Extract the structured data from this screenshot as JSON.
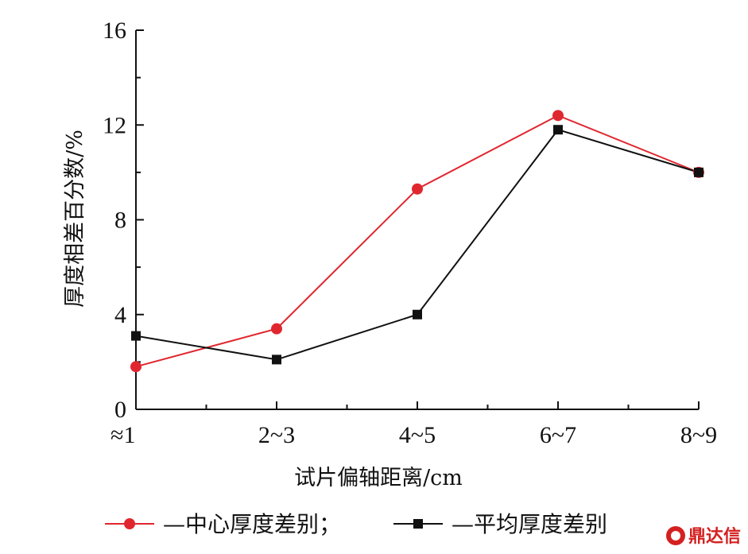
{
  "chart_data": {
    "type": "line",
    "categories": [
      "≈1",
      "2~3",
      "4~5",
      "6~7",
      "8~9"
    ],
    "series": [
      {
        "name": "—中心厚度差别；",
        "color": "#e0272f",
        "marker": "circle",
        "values": [
          1.8,
          3.4,
          9.3,
          12.4,
          10.0
        ]
      },
      {
        "name": "—平均厚度差别",
        "color": "#111111",
        "marker": "square",
        "values": [
          3.1,
          2.1,
          4.0,
          11.8,
          10.0
        ]
      }
    ],
    "xlabel": "试片偏轴距离/cm",
    "ylabel": "厚度相差百分数/%",
    "ylim": [
      0,
      16
    ],
    "yticks": [
      "0",
      "4",
      "8",
      "12",
      "16"
    ],
    "grid": false,
    "legend": "bottom"
  },
  "watermark": {
    "text": "鼎达信"
  }
}
